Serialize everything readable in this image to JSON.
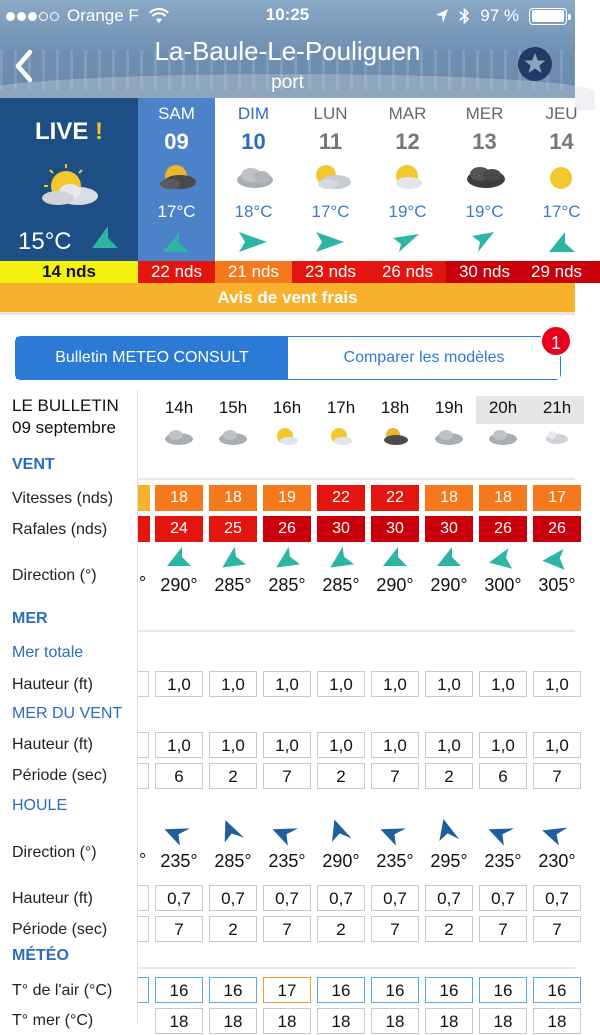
{
  "status_bar": {
    "carrier": "Orange F",
    "time": "10:25",
    "battery": "97 %",
    "battery_level": 0.97
  },
  "header": {
    "title": "La-Baule-Le-Pouliguen",
    "subtitle": "port"
  },
  "live": {
    "label": "LIVE",
    "bang": "!",
    "temp": "15°C",
    "knots": "14 nds",
    "icon": "sun-cloud-icon"
  },
  "days": [
    {
      "name": "SAM",
      "num": "09",
      "temp": "17°C",
      "knots": "22 nds",
      "icon": "sun-cloud-dark-icon"
    },
    {
      "name": "DIM",
      "num": "10",
      "temp": "18°C",
      "knots": "21 nds",
      "icon": "cloud-icon"
    },
    {
      "name": "LUN",
      "num": "11",
      "temp": "17°C",
      "knots": "23 nds",
      "icon": "sun-cloud-icon"
    },
    {
      "name": "MAR",
      "num": "12",
      "temp": "19°C",
      "knots": "26 nds",
      "icon": "sun-cloud-icon"
    },
    {
      "name": "MER",
      "num": "13",
      "temp": "19°C",
      "knots": "30 nds",
      "icon": "dark-cloud-icon"
    },
    {
      "name": "JEU",
      "num": "14",
      "temp": "17°C",
      "knots": "29 nds",
      "icon": "sun-icon"
    }
  ],
  "wind_alert": "Avis de vent frais",
  "tabs": {
    "bulletin": "Bulletin METEO CONSULT",
    "compare": "Comparer les modèles",
    "badge": "1"
  },
  "bulletin": {
    "title": "LE BULLETIN",
    "date": "09 septembre",
    "hours": [
      "14h",
      "15h",
      "16h",
      "17h",
      "18h",
      "19h",
      "20h",
      "21h"
    ],
    "sections": {
      "vent": "VENT",
      "mer": "MER",
      "mer_totale": "Mer totale",
      "mer_du_vent": "MER DU VENT",
      "houle": "HOULE",
      "meteo": "MÉTÉO"
    },
    "labels": {
      "vitesses": "Vitesses (nds)",
      "rafales": "Rafales (nds)",
      "direction": "Direction (°)",
      "hauteur": "Hauteur (ft)",
      "periode": "Période (sec)",
      "t_air": "T° de l'air (°C)",
      "t_mer": "T° mer (°C)"
    },
    "vitesses": [
      "18",
      "18",
      "19",
      "22",
      "22",
      "18",
      "18",
      "17"
    ],
    "rafales": [
      "24",
      "25",
      "26",
      "30",
      "30",
      "30",
      "26",
      "26"
    ],
    "vent_direction": [
      "290°",
      "285°",
      "285°",
      "285°",
      "290°",
      "290°",
      "300°",
      "305°"
    ],
    "mer_totale_hauteur": [
      "1,0",
      "1,0",
      "1,0",
      "1,0",
      "1,0",
      "1,0",
      "1,0",
      "1,0"
    ],
    "mer_vent_hauteur": [
      "1,0",
      "1,0",
      "1,0",
      "1,0",
      "1,0",
      "1,0",
      "1,0",
      "1,0"
    ],
    "mer_vent_periode": [
      "6",
      "2",
      "7",
      "2",
      "7",
      "2",
      "6",
      "7"
    ],
    "houle_direction": [
      "235°",
      "285°",
      "235°",
      "290°",
      "235°",
      "295°",
      "235°",
      "230°"
    ],
    "houle_hauteur": [
      "0,7",
      "0,7",
      "0,7",
      "0,7",
      "0,7",
      "0,7",
      "0,7",
      "0,7"
    ],
    "houle_periode": [
      "7",
      "2",
      "7",
      "2",
      "7",
      "2",
      "7",
      "7"
    ],
    "t_air": [
      "16",
      "16",
      "17",
      "16",
      "16",
      "16",
      "16",
      "16"
    ],
    "t_mer": [
      "18",
      "18",
      "18",
      "18",
      "18",
      "18",
      "18",
      "18"
    ]
  }
}
